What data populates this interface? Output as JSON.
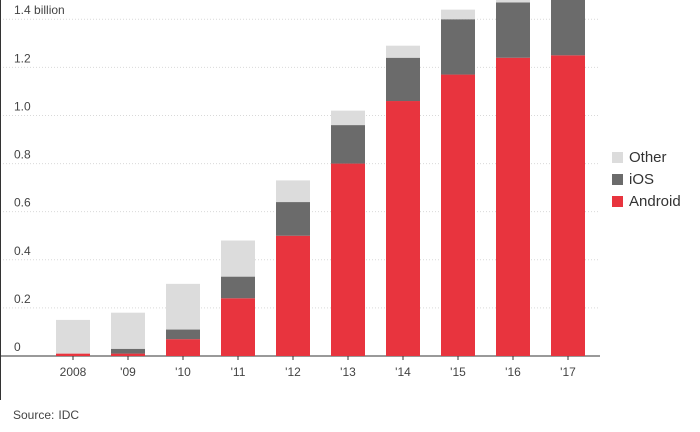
{
  "chart_data": {
    "type": "bar",
    "stacked": true,
    "categories": [
      "2008",
      "'09",
      "'10",
      "'11",
      "'12",
      "'13",
      "'14",
      "'15",
      "'16",
      "'17"
    ],
    "series": [
      {
        "name": "Android",
        "color": "#e8343e",
        "values": [
          0.01,
          0.01,
          0.07,
          0.24,
          0.5,
          0.8,
          1.06,
          1.17,
          1.24,
          1.25
        ]
      },
      {
        "name": "iOS",
        "color": "#6b6b6b",
        "values": [
          0.0,
          0.02,
          0.04,
          0.09,
          0.14,
          0.16,
          0.18,
          0.23,
          0.23,
          0.23
        ]
      },
      {
        "name": "Other",
        "color": "#dcdcdc",
        "values": [
          0.14,
          0.15,
          0.19,
          0.15,
          0.09,
          0.06,
          0.05,
          0.04,
          0.01,
          0.0
        ]
      }
    ],
    "y_ticks": [
      "0",
      "0.2",
      "0.4",
      "0.6",
      "0.8",
      "1.0",
      "1.2",
      "1.4 billion"
    ],
    "ylim": [
      0,
      1.48
    ],
    "grid": true,
    "legend_position": "right",
    "title": "",
    "xlabel": "",
    "ylabel": ""
  },
  "legend": [
    {
      "label": "Other",
      "color": "#dcdcdc"
    },
    {
      "label": "iOS",
      "color": "#6b6b6b"
    },
    {
      "label": "Android",
      "color": "#e8343e"
    }
  ],
  "source": {
    "label": "Source:",
    "value": "IDC"
  }
}
